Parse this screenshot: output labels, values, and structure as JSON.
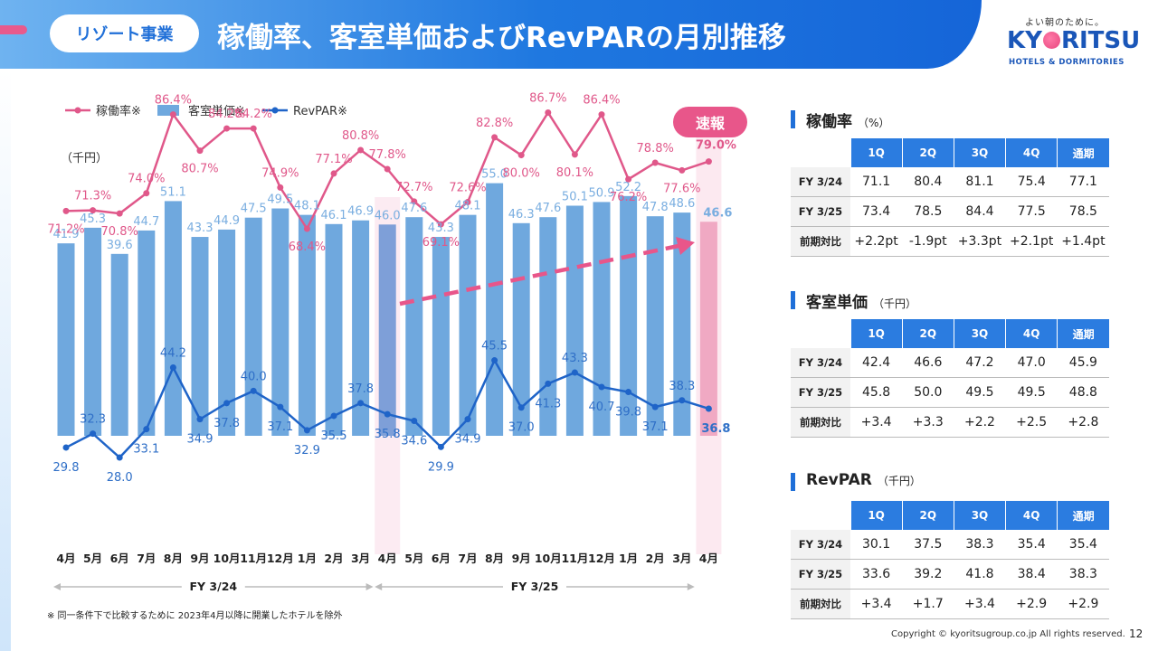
{
  "header": {
    "tag": "リゾート事業",
    "title": "稼働率、客室単価およびRevPARの月別推移",
    "logo_tagline": "よい朝のために。",
    "logo_name_pre": "KY",
    "logo_name_post": "RITSU",
    "logo_sub": "HOTELS & DORMITORIES"
  },
  "badge": "速報",
  "footnote": "※ 同一条件下で比較するために 2023年4月以降に開業したホテルを除外",
  "copyright": "Copyright © kyoritsugroup.co.jp All rights reserved.",
  "page_number": "12",
  "colors": {
    "occupancy": "#e0588a",
    "room_rate": "#6fa8de",
    "revpar": "#1f64c8",
    "accent": "#1f6fd8"
  },
  "chart_data": {
    "type": "bar",
    "legend": [
      "稼働率※",
      "客室単価※",
      "RevPAR※"
    ],
    "unit_label": "（千円）",
    "categories": [
      "4月",
      "5月",
      "6月",
      "7月",
      "8月",
      "9月",
      "10月",
      "11月",
      "12月",
      "1月",
      "2月",
      "3月",
      "4月",
      "5月",
      "6月",
      "7月",
      "8月",
      "9月",
      "10月",
      "11月",
      "12月",
      "1月",
      "2月",
      "3月",
      "4月"
    ],
    "fiscal_groups": [
      {
        "label": "FY 3/24",
        "start": 0,
        "end": 11
      },
      {
        "label": "FY 3/25",
        "start": 12,
        "end": 23
      }
    ],
    "series": [
      {
        "name": "客室単価※",
        "kind": "bar",
        "values": [
          41.9,
          45.3,
          39.6,
          44.7,
          51.1,
          43.3,
          44.9,
          47.5,
          49.5,
          48.1,
          46.1,
          46.9,
          46.0,
          47.6,
          43.3,
          48.1,
          55.0,
          46.3,
          47.6,
          50.1,
          50.9,
          52.2,
          47.8,
          48.6,
          46.6
        ]
      },
      {
        "name": "稼働率※",
        "kind": "line",
        "unit": "%",
        "values": [
          71.2,
          71.3,
          70.8,
          74.0,
          86.4,
          80.7,
          84.2,
          84.2,
          74.9,
          68.4,
          77.1,
          80.8,
          77.8,
          72.7,
          69.1,
          72.6,
          82.8,
          80.0,
          86.7,
          80.1,
          86.4,
          76.2,
          78.8,
          77.6,
          79.0
        ]
      },
      {
        "name": "RevPAR※",
        "kind": "line",
        "values": [
          29.8,
          32.3,
          28.0,
          33.1,
          44.2,
          34.9,
          37.8,
          40.0,
          37.1,
          32.9,
          35.5,
          37.8,
          35.8,
          34.6,
          29.9,
          34.9,
          45.5,
          37.0,
          41.3,
          43.3,
          40.7,
          39.8,
          37.1,
          38.3,
          36.8
        ]
      }
    ],
    "highlights": [
      12,
      24
    ],
    "grid": false,
    "legend_position": "top-left"
  },
  "tables": [
    {
      "title": "稼働率",
      "unit": "（%）",
      "columns": [
        "1Q",
        "2Q",
        "3Q",
        "4Q",
        "通期"
      ],
      "rows": [
        {
          "label": "FY 3/24",
          "values": [
            "71.1",
            "80.4",
            "81.1",
            "75.4",
            "77.1"
          ]
        },
        {
          "label": "FY 3/25",
          "values": [
            "73.4",
            "78.5",
            "84.4",
            "77.5",
            "78.5"
          ]
        },
        {
          "label": "前期対比",
          "values": [
            "+2.2pt",
            "-1.9pt",
            "+3.3pt",
            "+2.1pt",
            "+1.4pt"
          ]
        }
      ]
    },
    {
      "title": "客室単価",
      "unit": "（千円）",
      "columns": [
        "1Q",
        "2Q",
        "3Q",
        "4Q",
        "通期"
      ],
      "rows": [
        {
          "label": "FY 3/24",
          "values": [
            "42.4",
            "46.6",
            "47.2",
            "47.0",
            "45.9"
          ]
        },
        {
          "label": "FY 3/25",
          "values": [
            "45.8",
            "50.0",
            "49.5",
            "49.5",
            "48.8"
          ]
        },
        {
          "label": "前期対比",
          "values": [
            "+3.4",
            "+3.3",
            "+2.2",
            "+2.5",
            "+2.8"
          ]
        }
      ]
    },
    {
      "title": "RevPAR",
      "unit": "（千円）",
      "columns": [
        "1Q",
        "2Q",
        "3Q",
        "4Q",
        "通期"
      ],
      "rows": [
        {
          "label": "FY 3/24",
          "values": [
            "30.1",
            "37.5",
            "38.3",
            "35.4",
            "35.4"
          ]
        },
        {
          "label": "FY 3/25",
          "values": [
            "33.6",
            "39.2",
            "41.8",
            "38.4",
            "38.3"
          ]
        },
        {
          "label": "前期対比",
          "values": [
            "+3.4",
            "+1.7",
            "+3.4",
            "+2.9",
            "+2.9"
          ]
        }
      ]
    }
  ]
}
